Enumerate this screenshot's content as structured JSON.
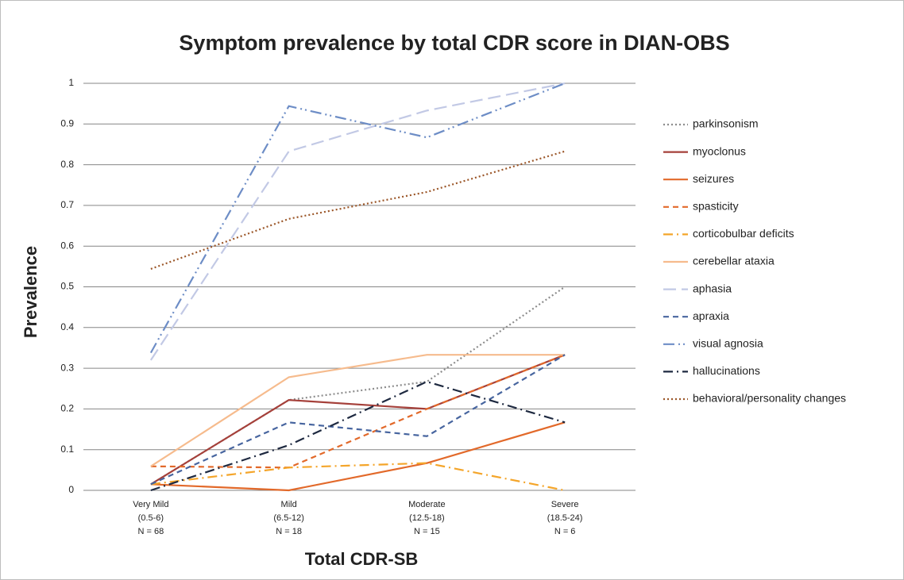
{
  "chart_data": {
    "type": "line",
    "title": "Symptom prevalence by total CDR score in DIAN-OBS",
    "x_label": "Total CDR-SB",
    "y_label": "Prevalence",
    "categories": [
      [
        "Very Mild",
        "(0.5-6)",
        "N = 68"
      ],
      [
        "Mild",
        "(6.5-12)",
        "N = 18"
      ],
      [
        "Moderate",
        "(12.5-18)",
        "N = 15"
      ],
      [
        "Severe",
        "(18.5-24)",
        "N = 6"
      ]
    ],
    "ylim": [
      0,
      1
    ],
    "yticks": [
      0,
      0.1,
      0.2,
      0.3,
      0.4,
      0.5,
      0.6,
      0.7,
      0.8,
      0.9,
      1
    ],
    "grid": true,
    "legend": "right",
    "series": [
      {
        "name": "parkinsonism",
        "color": "#8c8c8c",
        "dash": "dot",
        "values": [
          0.015,
          0.222,
          0.267,
          0.5
        ]
      },
      {
        "name": "myoclonus",
        "color": "#a5403a",
        "dash": "solid",
        "values": [
          0.015,
          0.222,
          0.2,
          0.333
        ]
      },
      {
        "name": "seizures",
        "color": "#e2692a",
        "dash": "solid",
        "values": [
          0.015,
          0,
          0.067,
          0.167
        ]
      },
      {
        "name": "spasticity",
        "color": "#e2692a",
        "dash": "dash",
        "values": [
          0.059,
          0.056,
          0.2,
          0.333
        ]
      },
      {
        "name": "corticobulbar deficits",
        "color": "#f4a52a",
        "dash": "dashdot",
        "values": [
          0.015,
          0.056,
          0.067,
          0
        ]
      },
      {
        "name": "cerebellar ataxia",
        "color": "#f6bb8d",
        "dash": "solid",
        "values": [
          0.059,
          0.278,
          0.333,
          0.333
        ]
      },
      {
        "name": "aphasia",
        "color": "#c2c9e5",
        "dash": "longdash",
        "values": [
          0.32,
          0.833,
          0.933,
          1
        ]
      },
      {
        "name": "apraxia",
        "color": "#47659f",
        "dash": "dash",
        "values": [
          0.015,
          0.167,
          0.133,
          0.333
        ]
      },
      {
        "name": "visual agnosia",
        "color": "#6d8dc6",
        "dash": "dashdotdot",
        "values": [
          0.338,
          0.944,
          0.867,
          1
        ]
      },
      {
        "name": "hallucinations",
        "color": "#1e2940",
        "dash": "dashdot",
        "values": [
          0,
          0.111,
          0.267,
          0.167
        ]
      },
      {
        "name": "behavioral/personality changes",
        "color": "#9b5628",
        "dash": "dot",
        "values": [
          0.544,
          0.667,
          0.733,
          0.833
        ]
      }
    ]
  }
}
